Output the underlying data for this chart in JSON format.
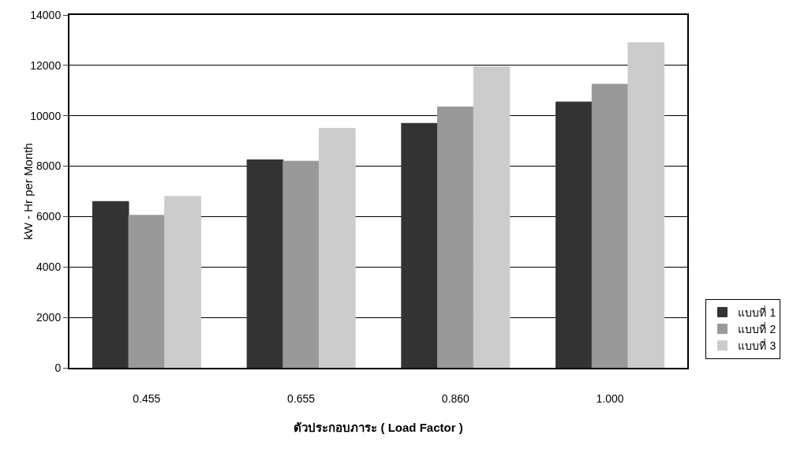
{
  "chart_data": {
    "type": "bar",
    "xlabel": "ตัวประกอบภาระ ( Load Factor )",
    "ylabel": "kW - Hr per Month",
    "categories": [
      "0.455",
      "0.655",
      "0.860",
      "1.000"
    ],
    "series": [
      {
        "name": "แบบที่ 1",
        "color": "#333333",
        "values": [
          6600,
          8250,
          9700,
          10550
        ]
      },
      {
        "name": "แบบที่ 2",
        "color": "#999999",
        "values": [
          6050,
          8200,
          10350,
          11250
        ]
      },
      {
        "name": "แบบที่ 3",
        "color": "#cccccc",
        "values": [
          6800,
          9500,
          11950,
          12900
        ]
      }
    ],
    "ylim": [
      0,
      14000
    ],
    "yticks": [
      0,
      2000,
      4000,
      6000,
      8000,
      10000,
      12000,
      14000
    ],
    "grid": "y",
    "legend": "right"
  }
}
